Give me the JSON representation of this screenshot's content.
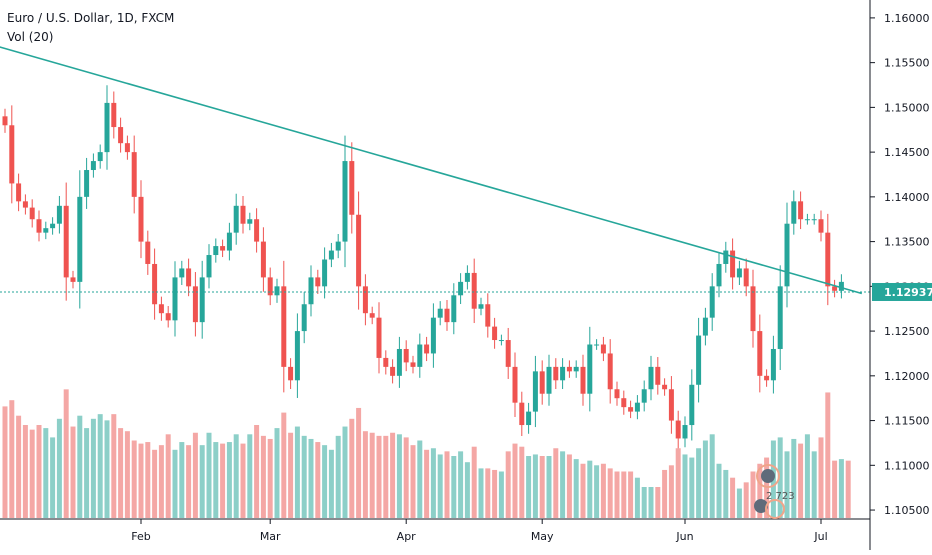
{
  "header": {
    "title": "Euro / U.S. Dollar, 1D, FXCM",
    "volume_label": "Vol (20)"
  },
  "price_badge": "1.12937",
  "watermark_text": "2 723",
  "colors": {
    "up": "#26a69a",
    "down": "#ef5350",
    "vol_up": "#8ccfc8",
    "vol_down": "#f4a7a5",
    "trendline": "#26a69a",
    "price_line": "#26a69a"
  },
  "chart_data": {
    "type": "candlestick",
    "symbol": "EURUSD",
    "timeframe": "1D",
    "y_ticks": [
      "1.16000",
      "1.15500",
      "1.15000",
      "1.14500",
      "1.14000",
      "1.13500",
      "1.13000",
      "1.12500",
      "1.12000",
      "1.11500",
      "1.11000",
      "1.10500"
    ],
    "x_ticks": [
      {
        "label": "Feb",
        "bar": 20
      },
      {
        "label": "Mar",
        "bar": 39
      },
      {
        "label": "Apr",
        "bar": 59
      },
      {
        "label": "May",
        "bar": 79
      },
      {
        "label": "Jun",
        "bar": 100
      },
      {
        "label": "Jul",
        "bar": 120
      }
    ],
    "ylim": [
      1.104,
      1.162
    ],
    "last_price": 1.12937,
    "trendline": {
      "from": {
        "bar": -1,
        "price": 1.1568
      },
      "to": {
        "bar": 126,
        "price": 1.1292
      }
    },
    "closes": [
      1.148,
      1.1415,
      1.1395,
      1.1388,
      1.1375,
      1.136,
      1.1365,
      1.137,
      1.139,
      1.131,
      1.1305,
      1.14,
      1.143,
      1.144,
      1.145,
      1.1505,
      1.1478,
      1.146,
      1.145,
      1.14,
      1.135,
      1.1325,
      1.128,
      1.127,
      1.1262,
      1.131,
      1.132,
      1.13,
      1.126,
      1.131,
      1.1335,
      1.1345,
      1.134,
      1.136,
      1.139,
      1.137,
      1.1375,
      1.135,
      1.131,
      1.129,
      1.13,
      1.121,
      1.1195,
      1.125,
      1.128,
      1.131,
      1.13,
      1.133,
      1.134,
      1.135,
      1.144,
      1.138,
      1.13,
      1.127,
      1.1265,
      1.122,
      1.121,
      1.12,
      1.123,
      1.1215,
      1.121,
      1.1235,
      1.1225,
      1.1265,
      1.1275,
      1.126,
      1.129,
      1.1305,
      1.1315,
      1.1275,
      1.128,
      1.1255,
      1.124,
      1.124,
      1.121,
      1.117,
      1.1145,
      1.116,
      1.1205,
      1.118,
      1.121,
      1.1195,
      1.121,
      1.1205,
      1.121,
      1.118,
      1.1235,
      1.1235,
      1.1225,
      1.1185,
      1.1175,
      1.1165,
      1.116,
      1.117,
      1.1185,
      1.121,
      1.119,
      1.1185,
      1.115,
      1.113,
      1.1145,
      1.119,
      1.1245,
      1.1265,
      1.13,
      1.1325,
      1.134,
      1.131,
      1.132,
      1.13,
      1.125,
      1.12,
      1.1195,
      1.123,
      1.13,
      1.137,
      1.1395,
      1.1375,
      1.1375,
      1.1375,
      1.136,
      1.13,
      1.1295,
      1.1305
    ],
    "volume": [
      0.72,
      0.76,
      0.66,
      0.6,
      0.57,
      0.6,
      0.58,
      0.52,
      0.64,
      0.83,
      0.59,
      0.66,
      0.58,
      0.64,
      0.67,
      0.63,
      0.67,
      0.58,
      0.56,
      0.5,
      0.48,
      0.49,
      0.44,
      0.47,
      0.54,
      0.44,
      0.49,
      0.47,
      0.55,
      0.47,
      0.55,
      0.49,
      0.48,
      0.49,
      0.54,
      0.48,
      0.54,
      0.6,
      0.53,
      0.51,
      0.58,
      0.68,
      0.55,
      0.59,
      0.53,
      0.51,
      0.49,
      0.47,
      0.44,
      0.53,
      0.59,
      0.64,
      0.71,
      0.56,
      0.55,
      0.53,
      0.53,
      0.55,
      0.54,
      0.52,
      0.47,
      0.5,
      0.44,
      0.45,
      0.41,
      0.43,
      0.4,
      0.43,
      0.36,
      0.46,
      0.32,
      0.32,
      0.31,
      0.3,
      0.43,
      0.48,
      0.46,
      0.4,
      0.41,
      0.4,
      0.4,
      0.45,
      0.43,
      0.41,
      0.38,
      0.35,
      0.37,
      0.34,
      0.35,
      0.32,
      0.3,
      0.3,
      0.3,
      0.26,
      0.2,
      0.2,
      0.2,
      0.31,
      0.34,
      0.45,
      0.41,
      0.39,
      0.45,
      0.5,
      0.54,
      0.35,
      0.31,
      0.26,
      0.19,
      0.23,
      0.3,
      0.35,
      0.39,
      0.5,
      0.52,
      0.43,
      0.51,
      0.48,
      0.54,
      0.43,
      0.52,
      0.81,
      0.37,
      0.38,
      0.37
    ]
  }
}
